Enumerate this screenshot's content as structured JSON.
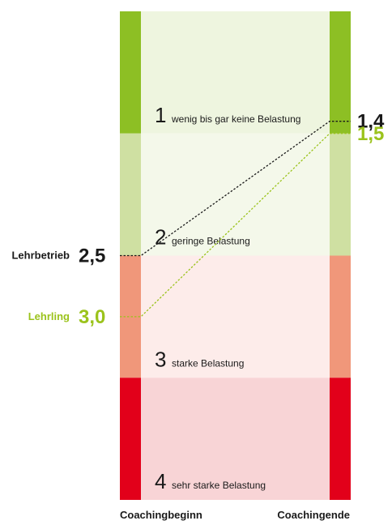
{
  "chart_data": {
    "type": "line",
    "x": [
      "Coachingbeginn",
      "Coachingende"
    ],
    "bands": [
      {
        "level": 1,
        "number": "1",
        "label": "wenig bis gar keine Belastung",
        "bar_color": "#8dbf24",
        "fill_color": "#eef5df"
      },
      {
        "level": 2,
        "number": "2",
        "label": "geringe Belastung",
        "bar_color": "#cfe0a2",
        "fill_color": "#f4f8ea"
      },
      {
        "level": 3,
        "number": "3",
        "label": "starke Belastung",
        "bar_color": "#f0977a",
        "fill_color": "#fdecea"
      },
      {
        "level": 4,
        "number": "4",
        "label": "sehr starke Belastung",
        "bar_color": "#e2001a",
        "fill_color": "#f8d4d6"
      }
    ],
    "series": [
      {
        "name": "Lehrbetrieb",
        "values": [
          2.5,
          1.4
        ],
        "value_labels": [
          "2,5",
          "1,4"
        ],
        "color": "#1a1a1a"
      },
      {
        "name": "Lehrling",
        "values": [
          3.0,
          1.5
        ],
        "value_labels": [
          "3,0",
          "1,5"
        ],
        "color": "#9bc31c"
      }
    ],
    "ylim": [
      0.5,
      4.5
    ],
    "y_inverted": true,
    "grid": false,
    "line_style": "dotted"
  }
}
